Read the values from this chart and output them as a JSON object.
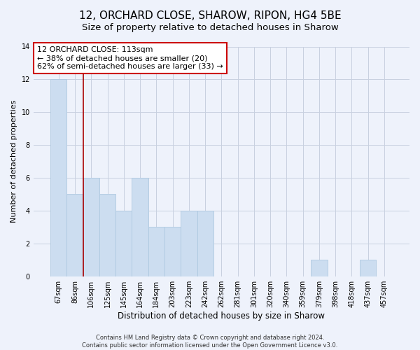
{
  "title": "12, ORCHARD CLOSE, SHAROW, RIPON, HG4 5BE",
  "subtitle": "Size of property relative to detached houses in Sharow",
  "xlabel": "Distribution of detached houses by size in Sharow",
  "ylabel": "Number of detached properties",
  "footer_line1": "Contains HM Land Registry data © Crown copyright and database right 2024.",
  "footer_line2": "Contains public sector information licensed under the Open Government Licence v3.0.",
  "bin_labels": [
    "67sqm",
    "86sqm",
    "106sqm",
    "125sqm",
    "145sqm",
    "164sqm",
    "184sqm",
    "203sqm",
    "223sqm",
    "242sqm",
    "262sqm",
    "281sqm",
    "301sqm",
    "320sqm",
    "340sqm",
    "359sqm",
    "379sqm",
    "398sqm",
    "418sqm",
    "437sqm",
    "457sqm"
  ],
  "bar_heights": [
    12,
    5,
    6,
    5,
    4,
    6,
    3,
    3,
    4,
    4,
    0,
    0,
    0,
    0,
    0,
    0,
    1,
    0,
    0,
    1,
    0
  ],
  "bar_color": "#ccddf0",
  "bar_edge_color": "#aec8e0",
  "vline_x": 1.5,
  "vline_color": "#aa0000",
  "annotation_title": "12 ORCHARD CLOSE: 113sqm",
  "annotation_line1": "← 38% of detached houses are smaller (20)",
  "annotation_line2": "62% of semi-detached houses are larger (33) →",
  "annotation_box_facecolor": "#ffffff",
  "annotation_box_edgecolor": "#cc0000",
  "ylim": [
    0,
    14
  ],
  "yticks": [
    0,
    2,
    4,
    6,
    8,
    10,
    12,
    14
  ],
  "grid_color": "#c8d0e0",
  "background_color": "#eef2fb",
  "title_fontsize": 11,
  "subtitle_fontsize": 9.5,
  "ylabel_fontsize": 8,
  "xlabel_fontsize": 8.5,
  "tick_fontsize": 7,
  "annotation_fontsize": 8,
  "footer_fontsize": 6
}
